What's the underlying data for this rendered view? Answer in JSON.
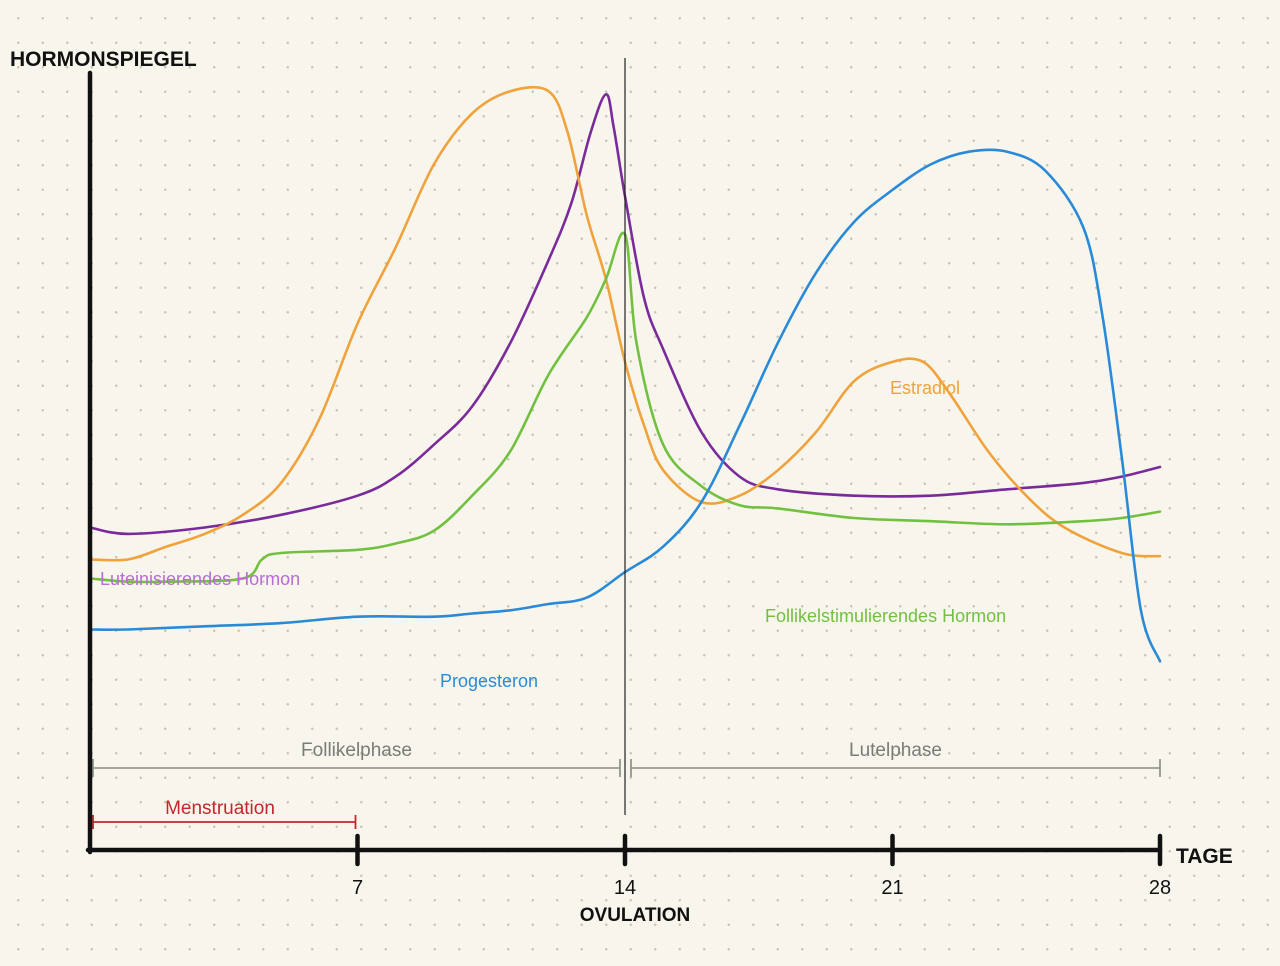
{
  "chart_data": {
    "type": "line",
    "title": "",
    "ylabel": "HORMONSPIEGEL",
    "xlabel": "TAGE",
    "xlim": [
      0,
      28
    ],
    "ylim": [
      0,
      100
    ],
    "x_ticks": [
      7,
      14,
      21,
      28
    ],
    "ovulation": {
      "day": 14,
      "label": "OVULATION"
    },
    "grid": false,
    "phases": [
      {
        "name": "Follikelphase",
        "start": 0,
        "end": 14
      },
      {
        "name": "Lutelphase",
        "start": 14,
        "end": 28
      }
    ],
    "menstruation": {
      "label": "Menstruation",
      "start": 0,
      "end": 7
    },
    "series": [
      {
        "name": "Luteinisierendes Hormon",
        "color": "#7a2a9b",
        "points": [
          [
            0,
            31
          ],
          [
            1,
            30
          ],
          [
            3,
            31
          ],
          [
            5,
            33
          ],
          [
            7,
            36
          ],
          [
            8,
            39
          ],
          [
            9,
            44
          ],
          [
            10,
            50
          ],
          [
            11,
            60
          ],
          [
            12,
            73
          ],
          [
            12.6,
            82
          ],
          [
            13.1,
            93
          ],
          [
            13.5,
            99
          ],
          [
            13.7,
            94
          ],
          [
            14,
            83
          ],
          [
            14.5,
            67
          ],
          [
            15,
            59
          ],
          [
            16,
            46
          ],
          [
            17,
            39
          ],
          [
            18,
            37
          ],
          [
            20,
            36
          ],
          [
            22,
            36
          ],
          [
            24,
            37
          ],
          [
            26,
            38
          ],
          [
            27,
            39
          ],
          [
            28,
            40.5
          ]
        ]
      },
      {
        "name": "Estradiol",
        "color": "#f0a23c",
        "points": [
          [
            0,
            26
          ],
          [
            1,
            26
          ],
          [
            2,
            28
          ],
          [
            3,
            30
          ],
          [
            4,
            33
          ],
          [
            5,
            38
          ],
          [
            6,
            48
          ],
          [
            7,
            63
          ],
          [
            8,
            75
          ],
          [
            9,
            88
          ],
          [
            10,
            96
          ],
          [
            11,
            99.5
          ],
          [
            12,
            99.5
          ],
          [
            12.5,
            93
          ],
          [
            13,
            80
          ],
          [
            13.5,
            70
          ],
          [
            14,
            57
          ],
          [
            14.5,
            47
          ],
          [
            15,
            40
          ],
          [
            16,
            35
          ],
          [
            17,
            36
          ],
          [
            18,
            40
          ],
          [
            19,
            46
          ],
          [
            20,
            54
          ],
          [
            21,
            57
          ],
          [
            21.8,
            57
          ],
          [
            22.5,
            52
          ],
          [
            23.5,
            43
          ],
          [
            24.5,
            36
          ],
          [
            25.5,
            31
          ],
          [
            27,
            27
          ],
          [
            28,
            26.5
          ]
        ]
      },
      {
        "name": "Follikelstimulierendes Hormon",
        "color": "#72c040",
        "points": [
          [
            0,
            23
          ],
          [
            1,
            22.5
          ],
          [
            2,
            22.5
          ],
          [
            4,
            23
          ],
          [
            4.5,
            26
          ],
          [
            5,
            27
          ],
          [
            7,
            27.5
          ],
          [
            8,
            28.5
          ],
          [
            9,
            30.5
          ],
          [
            10,
            36
          ],
          [
            11,
            43
          ],
          [
            12,
            55
          ],
          [
            13,
            64
          ],
          [
            13.5,
            70
          ],
          [
            14,
            77
          ],
          [
            14.3,
            60
          ],
          [
            15,
            44
          ],
          [
            16,
            37.5
          ],
          [
            17,
            34.5
          ],
          [
            18,
            34
          ],
          [
            20,
            32.5
          ],
          [
            22,
            32
          ],
          [
            24,
            31.5
          ],
          [
            26,
            32
          ],
          [
            27,
            32.5
          ],
          [
            28,
            33.5
          ]
        ]
      },
      {
        "name": "Progesteron",
        "color": "#2a8ad8",
        "points": [
          [
            0,
            15
          ],
          [
            1,
            15
          ],
          [
            3,
            15.5
          ],
          [
            5,
            16
          ],
          [
            7,
            17
          ],
          [
            9,
            17
          ],
          [
            10,
            17.5
          ],
          [
            11,
            18
          ],
          [
            12,
            19
          ],
          [
            13,
            20
          ],
          [
            14,
            24
          ],
          [
            15,
            28
          ],
          [
            16,
            35
          ],
          [
            17,
            47
          ],
          [
            18,
            60
          ],
          [
            19,
            71
          ],
          [
            20,
            79
          ],
          [
            21,
            84
          ],
          [
            22,
            88
          ],
          [
            23,
            90
          ],
          [
            24,
            90
          ],
          [
            25,
            87
          ],
          [
            26,
            78
          ],
          [
            26.5,
            64
          ],
          [
            27,
            42
          ],
          [
            27.5,
            18
          ],
          [
            28,
            10
          ]
        ]
      }
    ],
    "series_labels": [
      {
        "name": "Luteinisierendes Hormon",
        "color": "#b86cd6"
      },
      {
        "name": "Estradiol",
        "color": "#f0a23c"
      },
      {
        "name": "Follikelstimulierendes Hormon",
        "color": "#72c040"
      },
      {
        "name": "Progesteron",
        "color": "#2a8ad8"
      }
    ]
  }
}
